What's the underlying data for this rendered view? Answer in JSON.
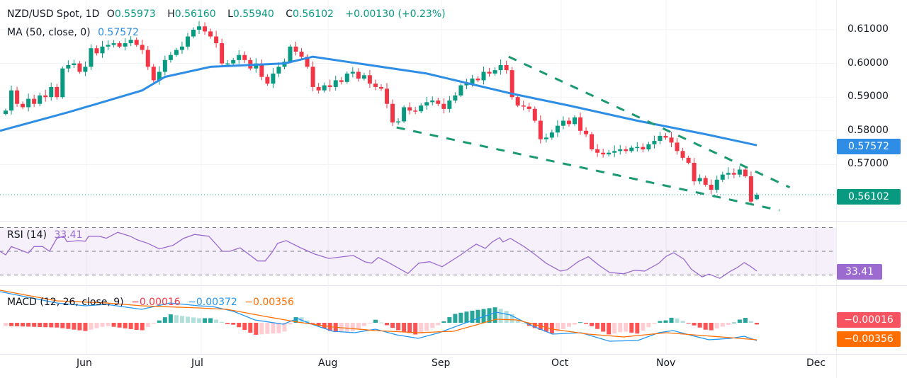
{
  "header": {
    "symbol": "NZD/USD Spot, 1D",
    "open_label": "O",
    "open": "0.55973",
    "high_label": "H",
    "high": "0.56160",
    "low_label": "L",
    "low": "0.55940",
    "close_label": "C",
    "close": "0.56102",
    "change": "+0.00130 (+0.23%)",
    "ma_label": "MA (50, close, 0)",
    "ma_value": "0.57572"
  },
  "rsi_legend": {
    "label": "RSI (14)",
    "value": "33.41"
  },
  "macd_legend": {
    "label": "MACD (12, 26, close, 9)",
    "hist": "−0.00016",
    "macd": "−0.00372",
    "signal": "−0.00356"
  },
  "axis_tags": {
    "price": "0.56102",
    "ma": "0.57572",
    "rsi": "33.41",
    "macd_hist": "−0.00016",
    "macd_signal": "−0.00356"
  },
  "colors": {
    "up": "#089981",
    "down": "#f23645",
    "ma": "#2e8ee6",
    "rsi": "#9c6bd0",
    "macd": "#2196f3",
    "signal": "#ff6d00",
    "channel": "#1a9972"
  },
  "chart_data": {
    "type": "candlestick",
    "title": "NZD/USD Spot, 1D",
    "yticks": [
      "0.61000",
      "0.60000",
      "0.59000",
      "0.58000",
      "0.57000"
    ],
    "ytick_values": [
      0.61,
      0.6,
      0.59,
      0.58,
      0.57
    ],
    "xticks": [
      "Jun",
      "Jul",
      "Aug",
      "Sep",
      "Oct",
      "Nov",
      "Dec"
    ],
    "closes": [
      0.586,
      0.592,
      0.588,
      0.587,
      0.5895,
      0.588,
      0.5905,
      0.59,
      0.593,
      0.59,
      0.5985,
      0.5995,
      0.6,
      0.5975,
      0.599,
      0.6045,
      0.603,
      0.605,
      0.6055,
      0.606,
      0.605,
      0.606,
      0.607,
      0.6055,
      0.604,
      0.599,
      0.595,
      0.5975,
      0.601,
      0.6025,
      0.604,
      0.605,
      0.608,
      0.61,
      0.611,
      0.6095,
      0.608,
      0.606,
      0.6,
      0.6,
      0.601,
      0.6025,
      0.601,
      0.5985,
      0.6,
      0.596,
      0.594,
      0.597,
      0.599,
      0.6005,
      0.605,
      0.6035,
      0.602,
      0.599,
      0.593,
      0.592,
      0.5935,
      0.593,
      0.595,
      0.5945,
      0.597,
      0.5975,
      0.5955,
      0.5965,
      0.594,
      0.593,
      0.5925,
      0.588,
      0.5825,
      0.5828,
      0.587,
      0.586,
      0.5858,
      0.5875,
      0.5885,
      0.589,
      0.588,
      0.5865,
      0.589,
      0.5905,
      0.5935,
      0.594,
      0.5955,
      0.595,
      0.5975,
      0.597,
      0.598,
      0.5995,
      0.598,
      0.59,
      0.5875,
      0.5872,
      0.5865,
      0.583,
      0.5775,
      0.578,
      0.5795,
      0.5815,
      0.583,
      0.582,
      0.584,
      0.58,
      0.579,
      0.5745,
      0.5735,
      0.573,
      0.5735,
      0.574,
      0.5745,
      0.574,
      0.575,
      0.5752,
      0.5745,
      0.576,
      0.577,
      0.5785,
      0.578,
      0.5765,
      0.574,
      0.572,
      0.5705,
      0.565,
      0.566,
      0.564,
      0.5625,
      0.5655,
      0.567,
      0.5675,
      0.567,
      0.5685,
      0.5665,
      0.559,
      0.56102
    ],
    "last_candle": {
      "open": 0.55973,
      "high": 0.5616,
      "low": 0.5594,
      "close": 0.56102
    },
    "ma50": {
      "bar": [
        -1,
        11,
        24,
        28,
        36,
        49,
        54,
        74,
        89,
        99,
        111,
        123,
        132
      ],
      "value": [
        0.58,
        0.5855,
        0.592,
        0.596,
        0.599,
        0.6,
        0.602,
        0.597,
        0.591,
        0.5875,
        0.583,
        0.579,
        0.57572
      ]
    },
    "channel": {
      "upper": {
        "bar": [
          88.4,
          137.8
        ],
        "price": [
          0.602,
          0.5632
        ]
      },
      "lower": {
        "bar": [
          68.7,
          136
        ],
        "price": [
          0.581,
          0.5564
        ]
      }
    },
    "rsi": {
      "levels": [
        70,
        50,
        30
      ],
      "bar": [
        -1,
        0,
        1,
        4,
        5,
        6.5,
        7.7,
        9,
        10.2,
        10.8,
        12.7,
        14,
        14.6,
        16.4,
        17.7,
        19.7,
        21.9,
        23.1,
        25,
        27,
        29.4,
        31.3,
        33.2,
        35.7,
        38.1,
        39.4,
        41.2,
        44.3,
        45.6,
        46.8,
        47.8,
        49.3,
        51.8,
        54.3,
        56.8,
        61.1,
        63.1,
        64.3,
        65.5,
        67.3,
        70.7,
        72.6,
        74.5,
        76.7,
        80,
        81.2,
        82.7,
        84.3,
        85.5,
        86.8,
        87.4,
        88.7,
        91.2,
        93.1,
        95,
        97.5,
        98.7,
        100.6,
        102.4,
        104.3,
        106.1,
        108.6,
        110.5,
        112.3,
        114.8,
        116.1,
        117.4,
        119.2,
        120.5,
        122.4,
        123.6,
        125.5,
        127.4,
        128.6,
        129.8,
        130.8,
        132
      ],
      "value": [
        50,
        47,
        54,
        48.5,
        54,
        54,
        50,
        61,
        62.7,
        58,
        59,
        58.5,
        62.7,
        62.7,
        61,
        66,
        62.7,
        59.7,
        56.7,
        52,
        55,
        61,
        64.2,
        62.7,
        50,
        50,
        53,
        41.8,
        41.8,
        49,
        56.7,
        59,
        53,
        47.7,
        44,
        46.5,
        41.2,
        40,
        44.8,
        40.5,
        31.3,
        40,
        41.2,
        37,
        47,
        51.2,
        56,
        52.5,
        57.9,
        61.5,
        57.9,
        60.9,
        53.7,
        47,
        39.9,
        33.3,
        34.5,
        41.2,
        45.4,
        38.2,
        32.2,
        31,
        34,
        33.3,
        39.9,
        45.9,
        48.8,
        43.3,
        34.9,
        28.4,
        30.8,
        27.2,
        33.3,
        36.3,
        40.5,
        37.6,
        33.41
      ]
    },
    "macd": {
      "macd": {
        "bar": [
          -1,
          4,
          9,
          14,
          17.7,
          23.9,
          28.9,
          33.9,
          36.4,
          40.1,
          43.8,
          48.8,
          51.3,
          53.8,
          57.5,
          61.3,
          65,
          68.7,
          72.5,
          76.2,
          81.2,
          86.2,
          88.7,
          92.4,
          96.1,
          101.1,
          106.1,
          111.1,
          114.8,
          117.3,
          121.1,
          123.6,
          127.4,
          129.8,
          132
        ],
        "value": [
          0.00653,
          0.00534,
          0.00415,
          0.00356,
          0.00386,
          0.00282,
          0.00415,
          0.00356,
          0.00341,
          0.00237,
          0.00059,
          -0.0003,
          0.00089,
          -0.0003,
          -0.00178,
          -0.00208,
          -0.00134,
          -0.00252,
          -0.00326,
          -0.00208,
          0.00015,
          0.00223,
          0.00163,
          -0.00059,
          -0.00237,
          -0.00208,
          -0.00386,
          -0.00371,
          -0.00208,
          -0.00163,
          -0.00282,
          -0.00356,
          -0.00326,
          -0.00282,
          -0.00372
        ]
      },
      "signal": {
        "bar": [
          -1,
          9,
          17.7,
          23.9,
          33.9,
          38.9,
          46.3,
          51.3,
          57.5,
          65,
          72.5,
          78.7,
          86.2,
          89.9,
          96.1,
          102.4,
          108.6,
          116.1,
          122.4,
          127.4,
          132
        ],
        "value": [
          0.00682,
          0.0046,
          0.00415,
          0.00356,
          0.00312,
          0.00282,
          0.00119,
          0.00015,
          -0.00089,
          -0.00163,
          -0.00208,
          -0.00178,
          0.00074,
          0.00059,
          -0.00134,
          -0.00237,
          -0.00297,
          -0.00208,
          -0.00267,
          -0.00312,
          -0.00356
        ]
      }
    }
  }
}
